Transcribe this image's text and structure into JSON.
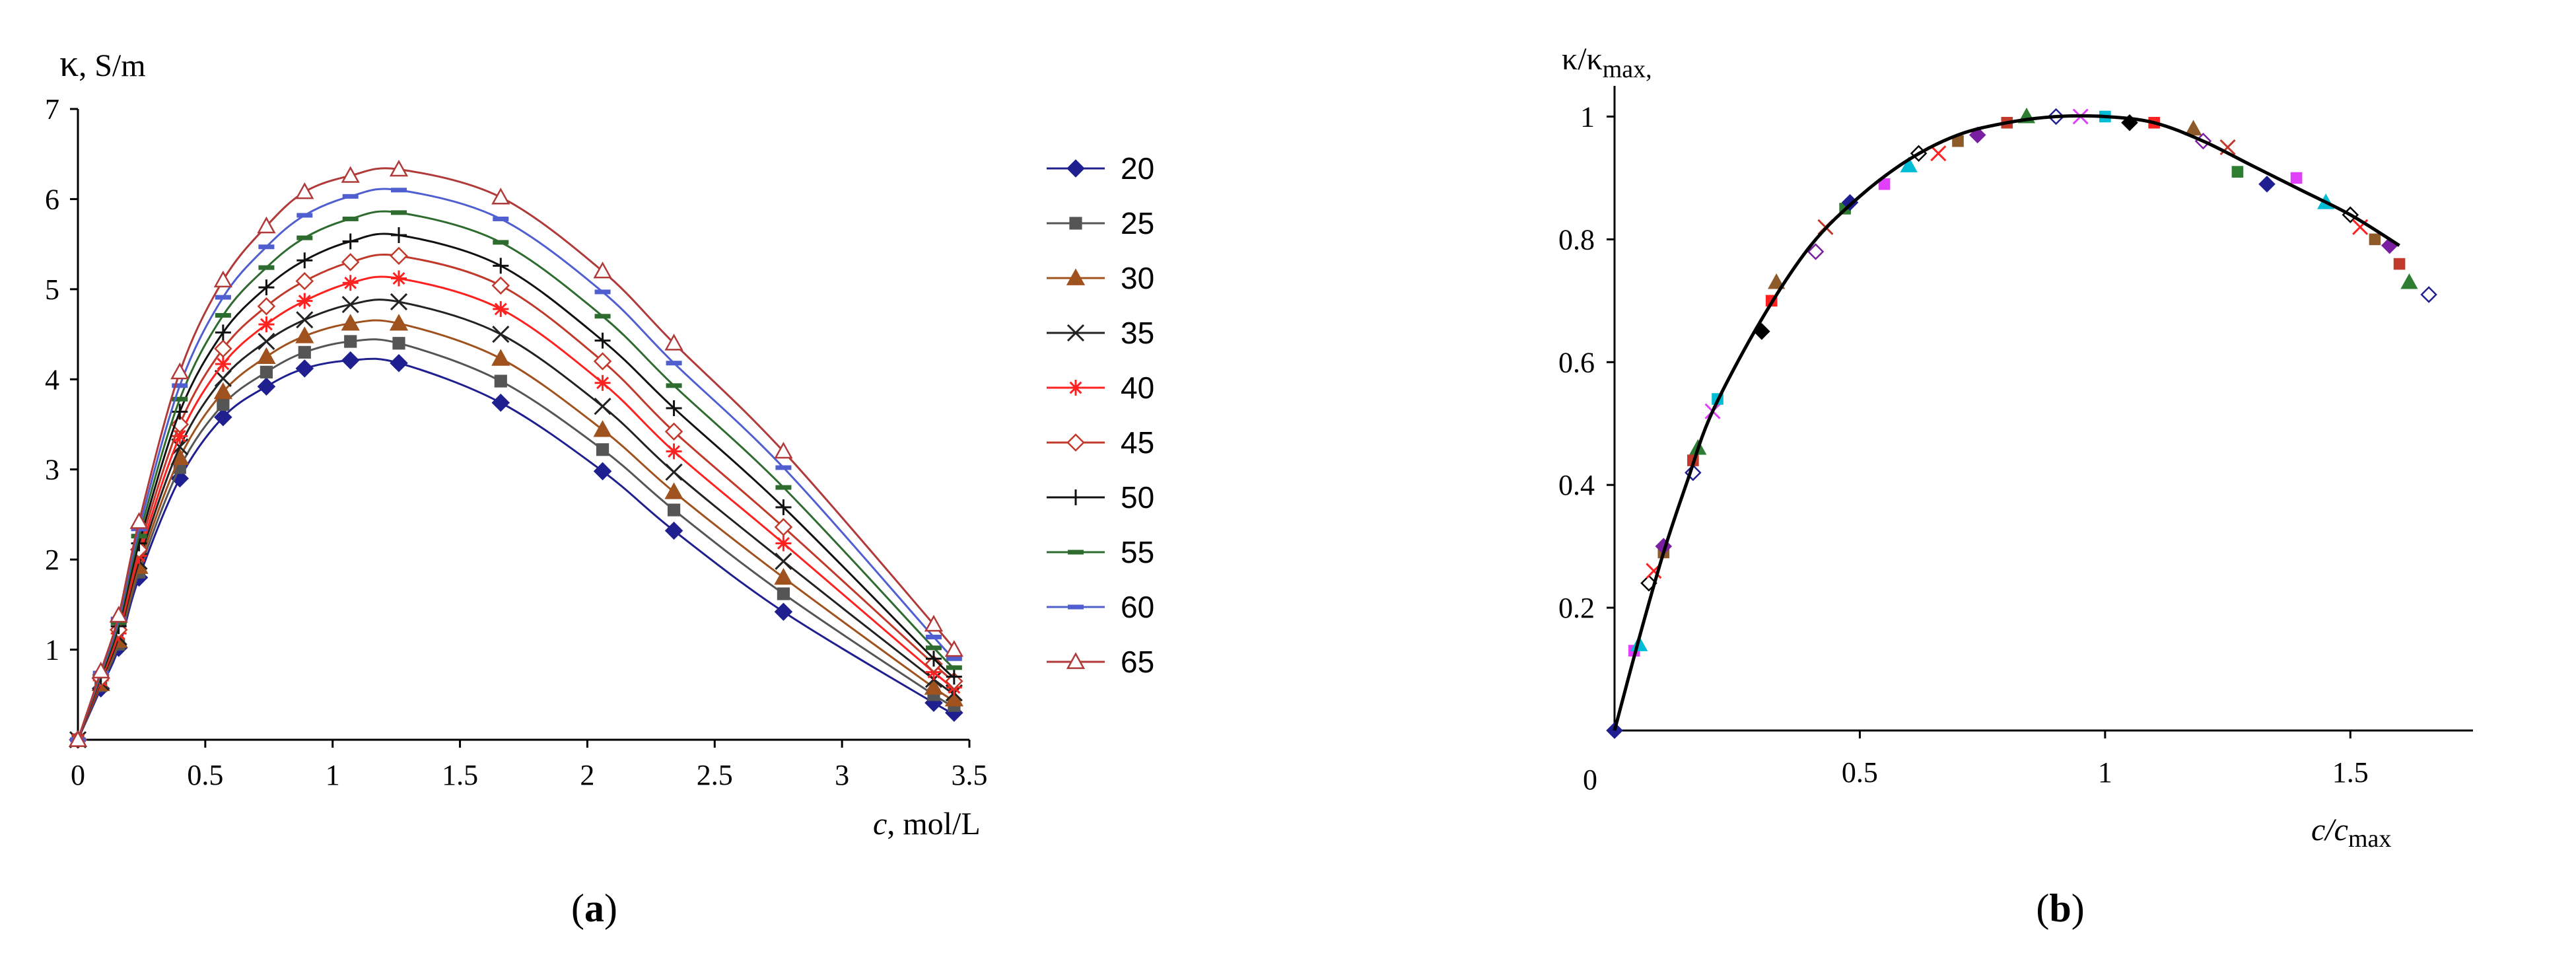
{
  "chart_data": [
    {
      "type": "line",
      "panel_label": "(a)",
      "panel_letter": "a",
      "ylabel_symbol": "κ",
      "ylabel_units": ", S/m",
      "xlabel_symbol": "c",
      "xlabel_units": ", mol/L",
      "xlim": [
        0,
        3.5
      ],
      "ylim": [
        0,
        7
      ],
      "xticks": [
        "0",
        "0.5",
        "1",
        "1.5",
        "2",
        "2.5",
        "3",
        "3.5"
      ],
      "yticks": [
        "1",
        "2",
        "3",
        "4",
        "5",
        "6",
        "7"
      ],
      "legend_position": "right",
      "x": [
        0.0,
        0.09,
        0.16,
        0.24,
        0.4,
        0.57,
        0.74,
        0.89,
        1.07,
        1.26,
        1.66,
        2.06,
        2.34,
        2.77,
        3.36,
        3.44
      ],
      "series": [
        {
          "name": "20",
          "marker": "diamond-filled",
          "color": "#1f1f8f",
          "values": [
            0.0,
            0.57,
            1.02,
            1.8,
            2.9,
            3.58,
            3.92,
            4.12,
            4.21,
            4.18,
            3.74,
            2.98,
            2.32,
            1.42,
            0.41,
            0.3
          ]
        },
        {
          "name": "25",
          "marker": "square-filled",
          "color": "#555555",
          "values": [
            0.0,
            0.6,
            1.06,
            1.86,
            3.02,
            3.72,
            4.08,
            4.3,
            4.42,
            4.4,
            3.98,
            3.22,
            2.55,
            1.62,
            0.5,
            0.38
          ]
        },
        {
          "name": "30",
          "marker": "triangle-filled",
          "color": "#a0521e",
          "values": [
            0.0,
            0.62,
            1.1,
            1.92,
            3.13,
            3.86,
            4.25,
            4.48,
            4.62,
            4.62,
            4.23,
            3.44,
            2.75,
            1.8,
            0.58,
            0.45
          ]
        },
        {
          "name": "35",
          "marker": "x",
          "color": "#222222",
          "values": [
            0.0,
            0.64,
            1.14,
            1.98,
            3.25,
            4.01,
            4.42,
            4.66,
            4.83,
            4.86,
            4.5,
            3.7,
            2.97,
            1.98,
            0.67,
            0.52
          ]
        },
        {
          "name": "40",
          "marker": "asterisk",
          "color": "#ff2020",
          "values": [
            0.0,
            0.66,
            1.18,
            2.04,
            3.37,
            4.17,
            4.61,
            4.87,
            5.07,
            5.12,
            4.78,
            3.96,
            3.2,
            2.18,
            0.75,
            0.58
          ]
        },
        {
          "name": "45",
          "marker": "diamond-open",
          "color": "#c0392b",
          "values": [
            0.0,
            0.68,
            1.22,
            2.11,
            3.5,
            4.34,
            4.81,
            5.09,
            5.3,
            5.37,
            5.04,
            4.2,
            3.42,
            2.36,
            0.84,
            0.65
          ]
        },
        {
          "name": "50",
          "marker": "plus",
          "color": "#111111",
          "values": [
            0.0,
            0.7,
            1.26,
            2.18,
            3.64,
            4.52,
            5.02,
            5.32,
            5.53,
            5.6,
            5.26,
            4.43,
            3.68,
            2.58,
            0.9,
            0.7
          ]
        },
        {
          "name": "55",
          "marker": "dash",
          "color": "#2e6b2e",
          "values": [
            0.0,
            0.72,
            1.3,
            2.26,
            3.78,
            4.71,
            5.24,
            5.57,
            5.78,
            5.85,
            5.52,
            4.7,
            3.93,
            2.8,
            1.02,
            0.8
          ]
        },
        {
          "name": "60",
          "marker": "dash",
          "color": "#4f5fd0",
          "values": [
            0.0,
            0.74,
            1.34,
            2.34,
            3.93,
            4.91,
            5.47,
            5.82,
            6.03,
            6.1,
            5.78,
            4.97,
            4.18,
            3.02,
            1.14,
            0.9
          ]
        },
        {
          "name": "65",
          "marker": "triangle-open",
          "color": "#b03a3a",
          "values": [
            0.0,
            0.76,
            1.38,
            2.42,
            4.08,
            5.1,
            5.7,
            6.08,
            6.26,
            6.33,
            6.02,
            5.2,
            4.4,
            3.2,
            1.28,
            1.0
          ]
        }
      ]
    },
    {
      "type": "scatter",
      "panel_label": "(b)",
      "panel_letter": "b",
      "ylabel_symbol": "κ/κ",
      "ylabel_sub": "max,",
      "xlabel_symbol": "c/c",
      "xlabel_sub": "max",
      "xlim": [
        0,
        1.75
      ],
      "ylim": [
        0,
        1.05
      ],
      "origin_label": "0",
      "xticks": [
        "0.5",
        "1",
        "1.5"
      ],
      "yticks": [
        "0.2",
        "0.4",
        "0.6",
        "0.8",
        "1"
      ],
      "curve": {
        "x": [
          0.0,
          0.05,
          0.1,
          0.15,
          0.2,
          0.3,
          0.4,
          0.5,
          0.6,
          0.7,
          0.8,
          0.9,
          1.0,
          1.1,
          1.2,
          1.3,
          1.4,
          1.5,
          1.6
        ],
        "y": [
          0.0,
          0.15,
          0.29,
          0.41,
          0.52,
          0.67,
          0.79,
          0.87,
          0.93,
          0.97,
          0.99,
          1.0,
          1.0,
          0.99,
          0.96,
          0.92,
          0.88,
          0.84,
          0.79
        ]
      },
      "colors": [
        "#1f1f8f",
        "#e040fb",
        "#00bcd4",
        "#000000",
        "#ff2020",
        "#8e5a2a",
        "#7b1fa2",
        "#c0392b",
        "#2e7d32"
      ],
      "points": {
        "x": [
          0.0,
          0.04,
          0.05,
          0.07,
          0.08,
          0.1,
          0.1,
          0.16,
          0.17,
          0.16,
          0.2,
          0.21,
          0.3,
          0.32,
          0.33,
          0.41,
          0.43,
          0.47,
          0.48,
          0.55,
          0.6,
          0.62,
          0.66,
          0.7,
          0.74,
          0.8,
          0.84,
          0.9,
          0.95,
          1.0,
          1.05,
          1.1,
          1.18,
          1.2,
          1.25,
          1.27,
          1.33,
          1.39,
          1.45,
          1.5,
          1.52,
          1.55,
          1.58,
          1.6,
          1.62,
          1.66
        ],
        "y": [
          0.0,
          0.13,
          0.14,
          0.24,
          0.26,
          0.29,
          0.3,
          0.44,
          0.46,
          0.42,
          0.52,
          0.54,
          0.65,
          0.7,
          0.73,
          0.78,
          0.82,
          0.85,
          0.86,
          0.89,
          0.92,
          0.94,
          0.94,
          0.96,
          0.97,
          0.99,
          1.0,
          1.0,
          1.0,
          1.0,
          0.99,
          0.99,
          0.98,
          0.96,
          0.95,
          0.91,
          0.89,
          0.9,
          0.86,
          0.84,
          0.82,
          0.8,
          0.79,
          0.76,
          0.73,
          0.71
        ]
      }
    }
  ]
}
